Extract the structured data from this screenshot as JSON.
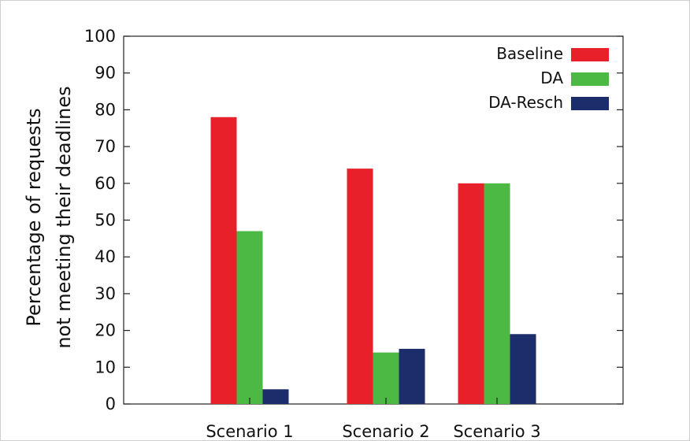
{
  "chart_data": {
    "type": "bar",
    "title": "",
    "xlabel": "",
    "ylabel": [
      "Percentage of requests",
      "not meeting their deadlines"
    ],
    "categories": [
      "Scenario 1",
      "Scenario 2",
      "Scenario 3"
    ],
    "series": [
      {
        "name": "Baseline",
        "values": [
          78,
          64,
          60
        ],
        "color": "#e8202a"
      },
      {
        "name": "DA",
        "values": [
          47,
          14,
          60
        ],
        "color": "#4cb944"
      },
      {
        "name": "DA-Resch",
        "values": [
          4,
          15,
          19
        ],
        "color": "#1b2d6b"
      }
    ],
    "ylim": [
      0,
      100
    ],
    "yticks": [
      0,
      10,
      20,
      30,
      40,
      50,
      60,
      70,
      80,
      90,
      100
    ],
    "grid": false,
    "legend_position": "top-right"
  }
}
